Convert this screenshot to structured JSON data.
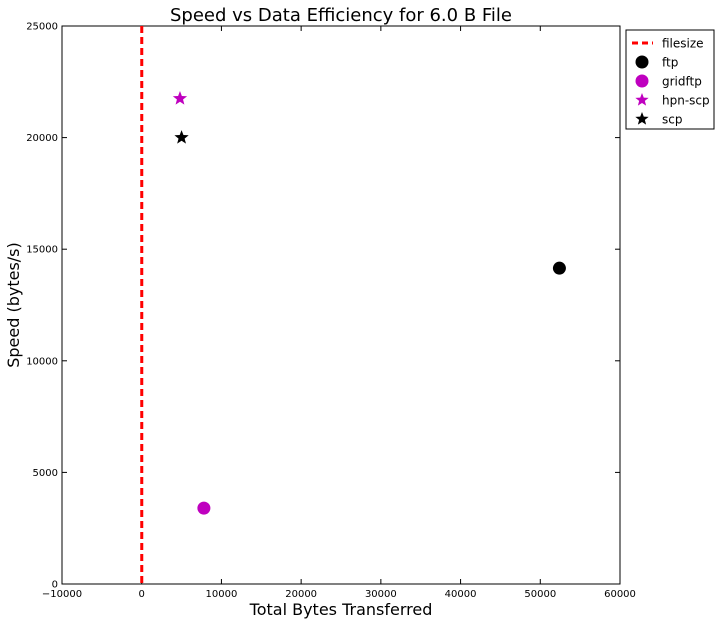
{
  "chart_data": {
    "type": "scatter",
    "title": "Speed vs Data Efficiency for 6.0 B File",
    "xlabel": "Total Bytes Transferred",
    "ylabel": "Speed (bytes/s)",
    "xlim": [
      -10000,
      60000
    ],
    "ylim": [
      0,
      25000
    ],
    "xticks": [
      -10000,
      0,
      10000,
      20000,
      30000,
      40000,
      50000,
      60000
    ],
    "yticks": [
      0,
      5000,
      10000,
      15000,
      20000,
      25000
    ],
    "grid": false,
    "legend_position": "outside-top-right",
    "reference_line": {
      "name": "filesize",
      "orientation": "vertical",
      "x": 6.0,
      "style": "dashed",
      "color": "#ff0000"
    },
    "series": [
      {
        "name": "ftp",
        "marker": "circle",
        "color": "#000000",
        "points": [
          {
            "x": 52400,
            "y": 14150
          }
        ]
      },
      {
        "name": "gridftp",
        "marker": "circle",
        "color": "#bf00bf",
        "points": [
          {
            "x": 7800,
            "y": 3400
          }
        ]
      },
      {
        "name": "hpn-scp",
        "marker": "star",
        "color": "#bf00bf",
        "points": [
          {
            "x": 4800,
            "y": 21750
          }
        ]
      },
      {
        "name": "scp",
        "marker": "star",
        "color": "#000000",
        "points": [
          {
            "x": 5000,
            "y": 20000
          }
        ]
      }
    ]
  }
}
